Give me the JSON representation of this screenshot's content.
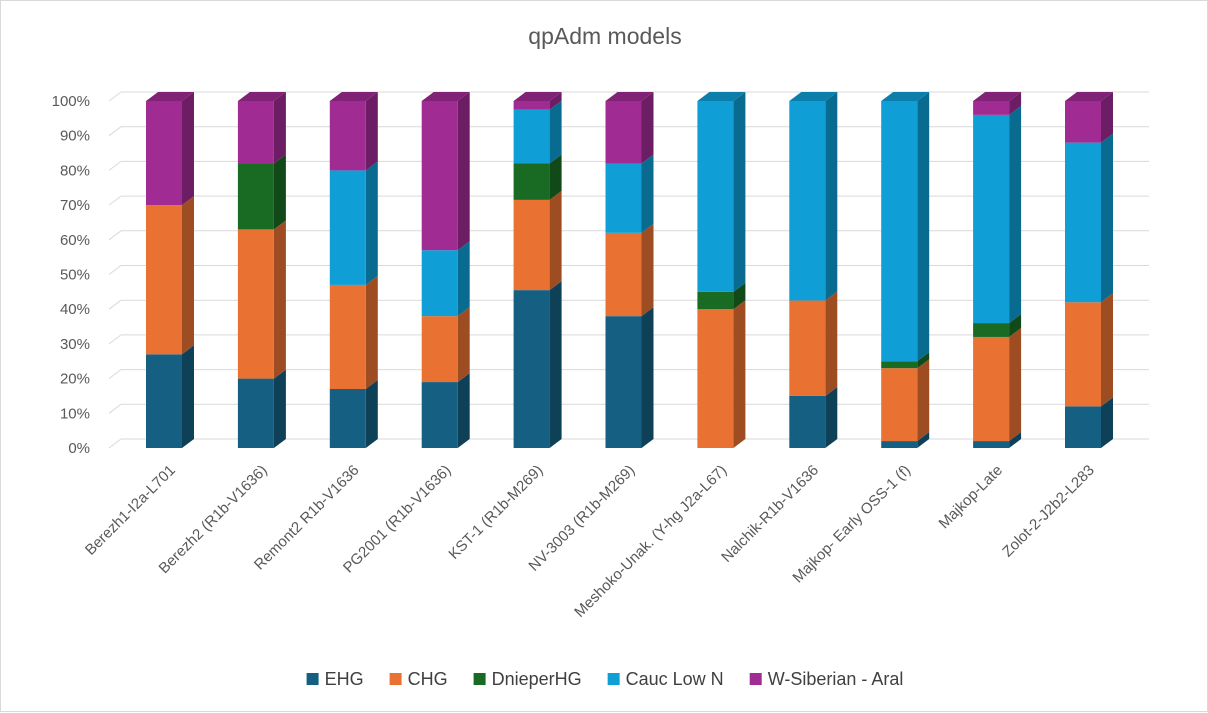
{
  "chart_data": {
    "type": "bar",
    "stacked": true,
    "percent": true,
    "three_d": true,
    "title": "qpAdm models",
    "categories": [
      "Berezh1-I2a-L701",
      "Berezh2 (R1b-V1636)",
      "Remont2 R1b-V1636",
      "PG2001 (R1b-V1636)",
      "KST-1 (R1b-M269)",
      "NV-3003 (R1b-M269)",
      "Meshoko-Unak. (Y-hg J2a-L67)",
      "Nalchik-R1b-V1636",
      "Majkop- Early OSS-1 (f)",
      "Majkop-Late",
      "Zolot-2-J2b2-L283"
    ],
    "series": [
      {
        "name": "EHG",
        "color": "#156082",
        "values": [
          27,
          20,
          17,
          19,
          45.5,
          38,
          0,
          15,
          2,
          2,
          12
        ]
      },
      {
        "name": "CHG",
        "color": "#E97132",
        "values": [
          43,
          43,
          30,
          19,
          26,
          24,
          40,
          27.5,
          21,
          30,
          30
        ]
      },
      {
        "name": "DnieperHG",
        "color": "#196B24",
        "values": [
          0,
          19,
          0,
          0,
          10.5,
          0,
          5,
          0,
          2,
          4,
          0
        ]
      },
      {
        "name": "Cauc Low N",
        "color": "#0F9ED5",
        "values": [
          0,
          0,
          33,
          19,
          15.5,
          20,
          55,
          57.5,
          75,
          60,
          46
        ]
      },
      {
        "name": "W-Siberian - Aral",
        "color": "#A02B93",
        "values": [
          30,
          18,
          20,
          43,
          2.5,
          18,
          0,
          0,
          0,
          4,
          12
        ]
      }
    ],
    "y_ticks": [
      "0%",
      "10%",
      "20%",
      "30%",
      "40%",
      "50%",
      "60%",
      "70%",
      "80%",
      "90%",
      "100%"
    ],
    "ylim": [
      0,
      100
    ],
    "grid": true,
    "legend_position": "bottom"
  }
}
